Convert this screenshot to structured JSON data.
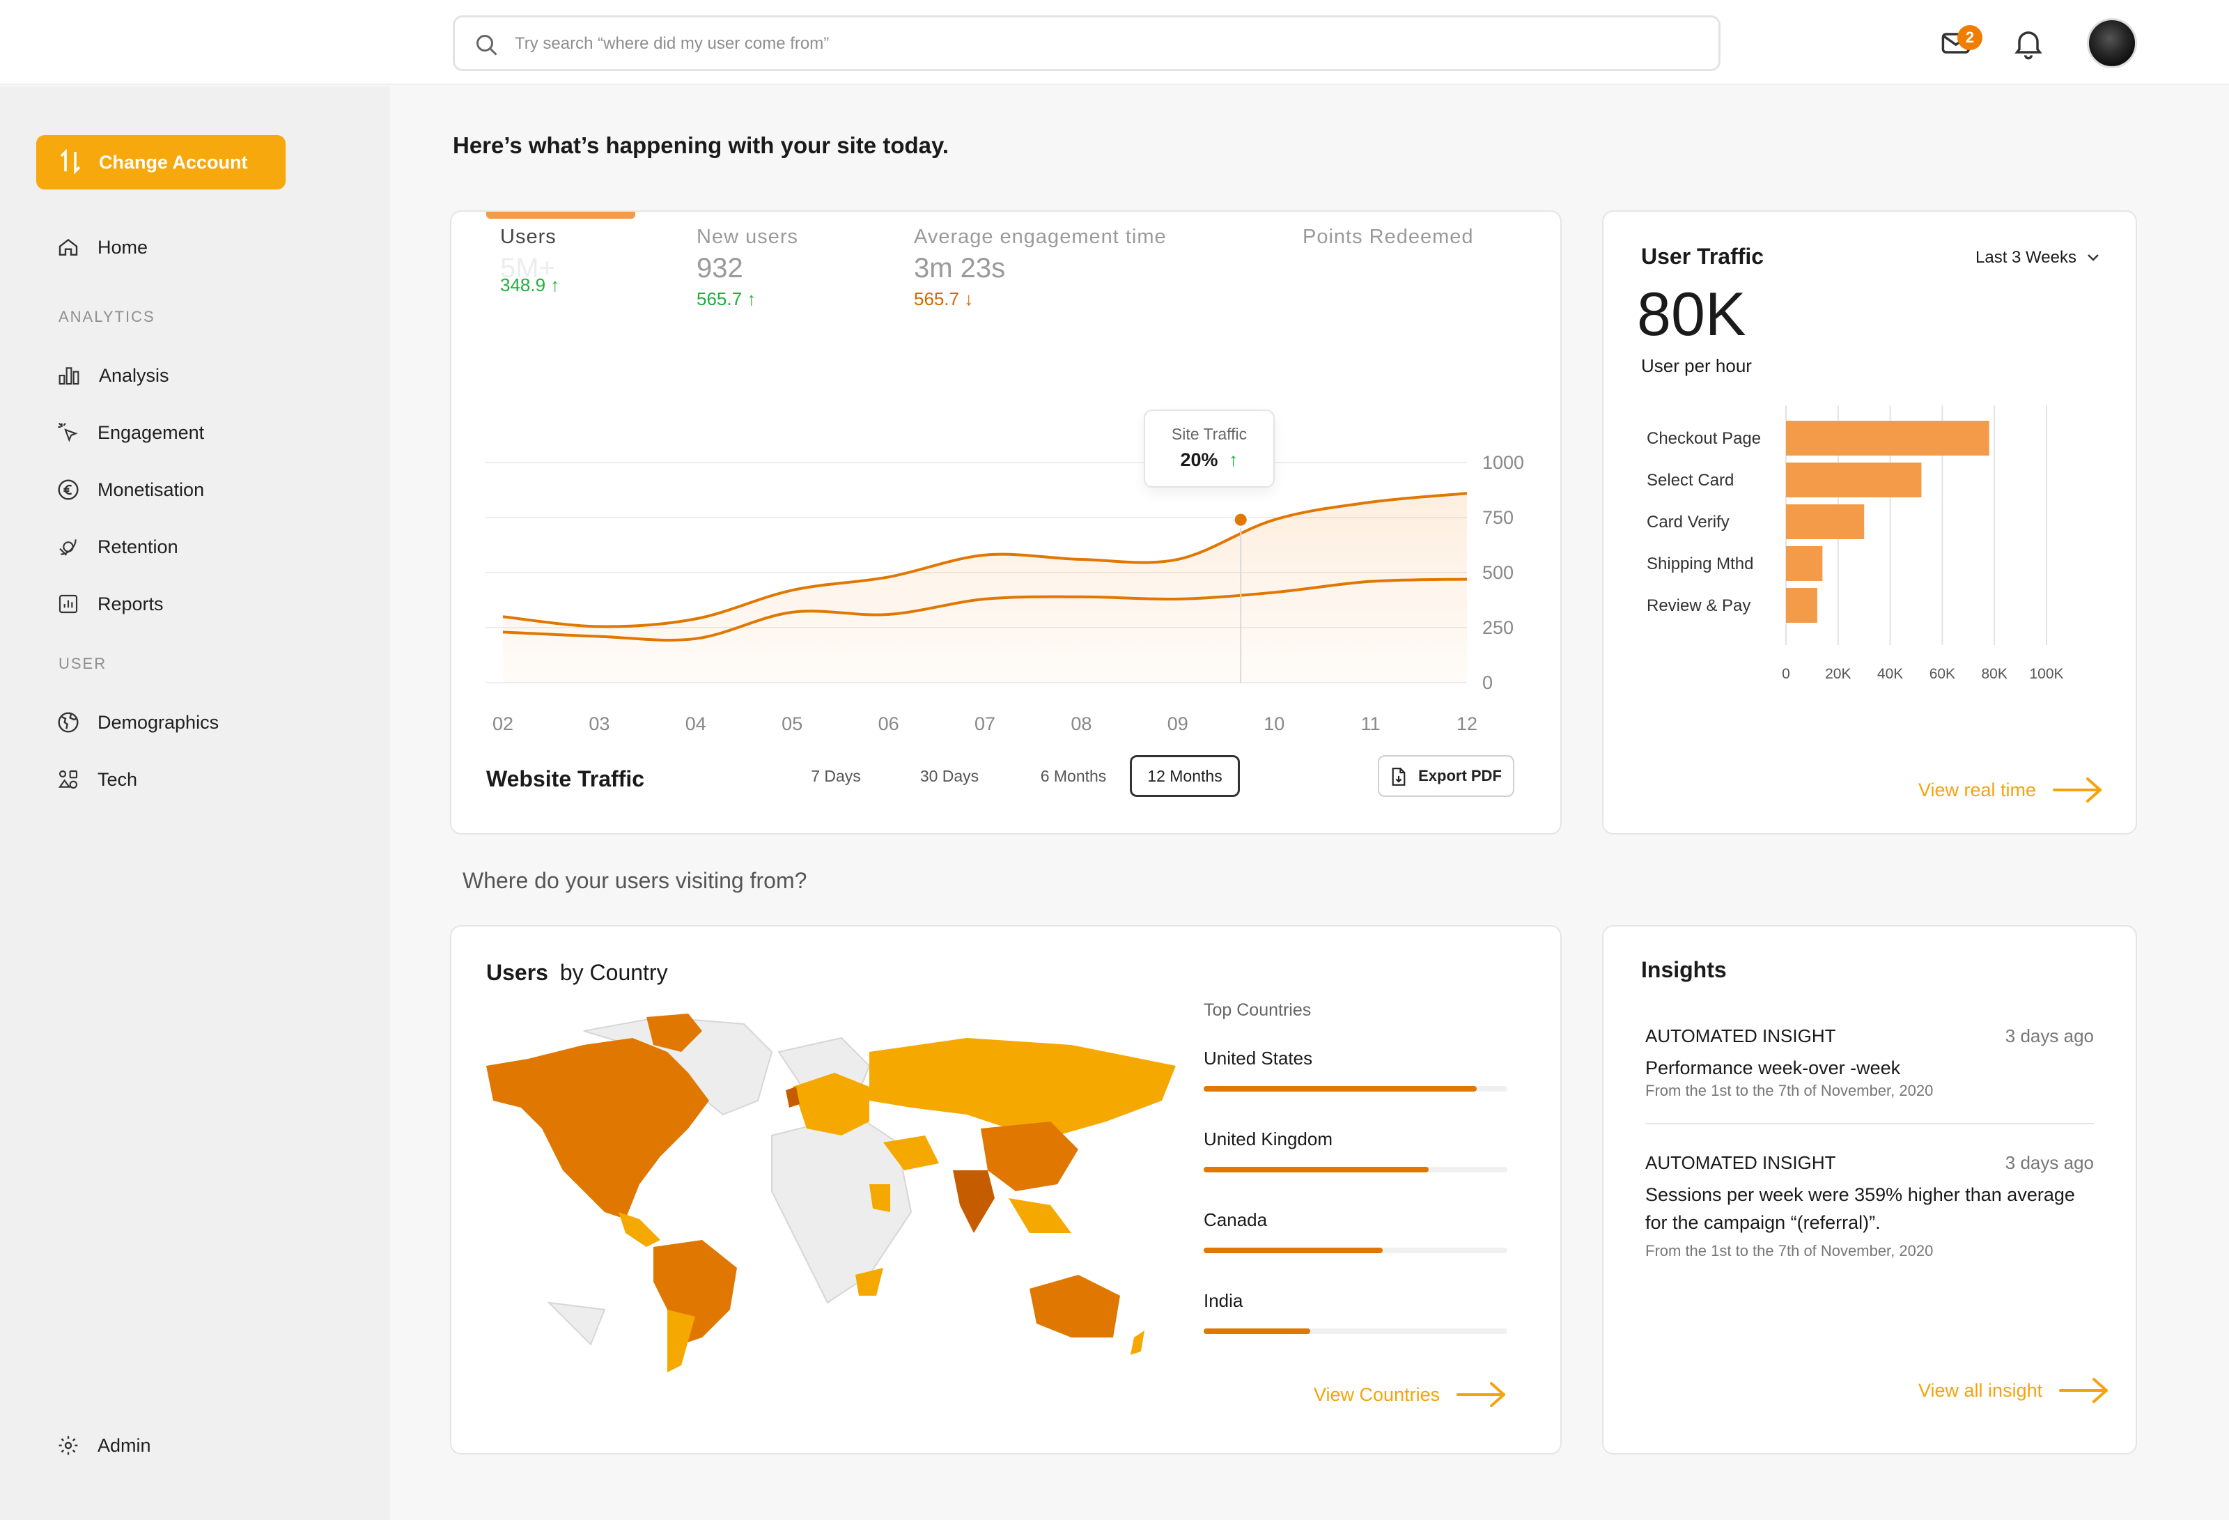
{
  "header": {
    "search_placeholder": "Try search “where did my user come from”",
    "mail_count": "2",
    "colors": {
      "accent": "#f7a80c",
      "accent_dark": "#e07700"
    }
  },
  "sidebar": {
    "change_account_label": "Change Account",
    "home_label": "Home",
    "section_analytics": "ANALYTICS",
    "items_analytics": [
      {
        "label": "Analysis",
        "icon": "bar-chart-icon"
      },
      {
        "label": "Engagement",
        "icon": "cursor-click-icon"
      },
      {
        "label": "Monetisation",
        "icon": "euro-icon"
      },
      {
        "label": "Retention",
        "icon": "retention-icon"
      },
      {
        "label": "Reports",
        "icon": "reports-icon"
      }
    ],
    "section_user": "USER",
    "items_user": [
      {
        "label": "Demographics",
        "icon": "globe-icon"
      },
      {
        "label": "Tech",
        "icon": "tech-icon"
      }
    ],
    "admin_label": "Admin"
  },
  "main": {
    "heading": "Here’s what’s happening with your site today.",
    "region_heading": "Where do your  users visiting from?"
  },
  "traffic_card": {
    "tabs": [
      {
        "label": "Users",
        "value": "5M+",
        "change": "348.9 ↑",
        "dir": "up"
      },
      {
        "label": "New users",
        "value": "932",
        "change": "565.7 ↑",
        "dir": "up"
      },
      {
        "label": "Average engagement time",
        "value": "3m 23s",
        "change": "565.7 ↓",
        "dir": "down"
      },
      {
        "label": "Points Redeemed",
        "value": "",
        "change": "",
        "dir": ""
      }
    ],
    "tooltip": {
      "title": "Site Traffic",
      "value": "20%",
      "arrow": "↑"
    },
    "title": "Website Traffic",
    "ranges": [
      "7 Days",
      "30 Days",
      "6 Months",
      "12 Months"
    ],
    "active_range": "12 Months",
    "export_label": "Export PDF"
  },
  "chart_data": [
    {
      "type": "line",
      "title": "Website Traffic",
      "x": [
        "02",
        "03",
        "04",
        "05",
        "06",
        "07",
        "08",
        "09",
        "10",
        "11",
        "12"
      ],
      "ylim": [
        0,
        1000
      ],
      "yticks": [
        0,
        250,
        500,
        750,
        1000
      ],
      "series": [
        {
          "values": [
            300,
            255,
            290,
            420,
            480,
            580,
            560,
            560,
            740,
            820,
            860
          ]
        },
        {
          "values": [
            230,
            210,
            200,
            320,
            310,
            380,
            390,
            380,
            410,
            460,
            470
          ]
        }
      ],
      "highlight": {
        "x": "10",
        "label": "Site Traffic",
        "value": "20%"
      }
    },
    {
      "type": "bar",
      "title": "User Traffic",
      "orientation": "horizontal",
      "categories": [
        "Checkout Page",
        "Select Card",
        "Card Verify",
        "Shipping Mthd",
        "Review & Pay"
      ],
      "values": [
        78000,
        52000,
        30000,
        14000,
        12000
      ],
      "xlim": [
        0,
        100000
      ],
      "xticks": [
        "0",
        "20K",
        "40K",
        "60K",
        "80K",
        "100K"
      ],
      "color": "#f39b48"
    }
  ],
  "user_traffic": {
    "title": "User Traffic",
    "period": "Last 3 Weeks",
    "value": "80K",
    "subtitle": "User per hour",
    "link": "View real time"
  },
  "countries_card": {
    "title_bold": "Users",
    "title_rest": "by Country",
    "top_label": "Top Countries",
    "countries": [
      {
        "name": "United States",
        "share": 0.9
      },
      {
        "name": "United Kingdom",
        "share": 0.74
      },
      {
        "name": "Canada",
        "share": 0.59
      },
      {
        "name": "India",
        "share": 0.35
      }
    ],
    "link": "View Countries"
  },
  "insights": {
    "title": "Insights",
    "items": [
      {
        "tag": "AUTOMATED INSIGHT",
        "time": "3 days ago",
        "text": "Performance week-over -week",
        "sub": "From the 1st to the 7th of November, 2020"
      },
      {
        "tag": "AUTOMATED INSIGHT",
        "time": "3 days ago",
        "text": "Sessions per week were 359% higher than average for the campaign “(referral)”.",
        "sub": "From the 1st to the 7th of November, 2020"
      }
    ],
    "link": "View all insight"
  }
}
